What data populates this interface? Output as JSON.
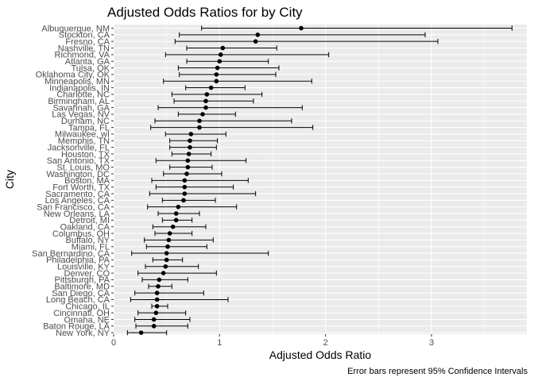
{
  "chart_data": {
    "type": "errorbar",
    "title": "Adjusted Odds Ratios for by City",
    "xlabel": "Adjusted Odds Ratio",
    "ylabel": "City",
    "caption": "Error bars represent 95% Confidence Intervals",
    "xlim": [
      0,
      3.9
    ],
    "xticks": [
      0,
      1,
      2,
      3
    ],
    "grid": true,
    "colors": {
      "panel": "#ebebeb",
      "grid_major": "#ffffff",
      "point": "#000000",
      "errorbar": "#000000"
    },
    "categories": [
      "Albuquerque, NM",
      "Stockton, CA",
      "Fresno, CA",
      "Nashville, TN",
      "Richmond, VA",
      "Atlanta, GA",
      "Tulsa, OK",
      "Oklahoma City, OK",
      "Minneapolis, MN",
      "Indianapolis, IN",
      "Charlotte, NC",
      "Birmingham, AL",
      "Savannah, GA",
      "Las Vegas, NV",
      "Durham, NC",
      "Tampa, FL",
      "Milwaukee, wI",
      "Memphis, TN",
      "Jacksonville, FL",
      "Houston, TX",
      "San Antonio, TX",
      "St. Louis, MO",
      "Washington, DC",
      "Boston, MA",
      "Fort Worth, TX",
      "Sacramento, CA",
      "Los Angeles, CA",
      "San Francisco, CA",
      "New Orleans, LA",
      "Detroit, MI",
      "Oakland, CA",
      "Columbus, OH",
      "Buffalo, NY",
      "Miami, FL",
      "San Bernardino, CA",
      "Philadelphia, PA",
      "Louisville, KY",
      "Denver, CO",
      "Pittsburgh, PA",
      "Baltimore, MD",
      "San Diego, CA",
      "Long Beach, CA",
      "Chicago, IL",
      "Cincinnati, OH",
      "Omaha, NE",
      "Baton Rouge, LA",
      "New York, NY"
    ],
    "estimates": [
      1.77,
      1.36,
      1.34,
      1.03,
      1.01,
      1.0,
      0.98,
      0.97,
      0.97,
      0.92,
      0.88,
      0.87,
      0.87,
      0.84,
      0.81,
      0.81,
      0.73,
      0.72,
      0.72,
      0.71,
      0.7,
      0.7,
      0.69,
      0.67,
      0.67,
      0.67,
      0.66,
      0.61,
      0.59,
      0.59,
      0.56,
      0.53,
      0.52,
      0.51,
      0.5,
      0.5,
      0.49,
      0.47,
      0.43,
      0.42,
      0.41,
      0.41,
      0.41,
      0.4,
      0.38,
      0.38,
      0.26
    ],
    "lower": [
      0.83,
      0.62,
      0.58,
      0.69,
      0.49,
      0.69,
      0.61,
      0.62,
      0.47,
      0.68,
      0.55,
      0.57,
      0.42,
      0.61,
      0.39,
      0.35,
      0.49,
      0.53,
      0.53,
      0.55,
      0.4,
      0.53,
      0.47,
      0.36,
      0.4,
      0.34,
      0.46,
      0.32,
      0.42,
      0.46,
      0.37,
      0.39,
      0.29,
      0.31,
      0.17,
      0.37,
      0.3,
      0.23,
      0.27,
      0.33,
      0.2,
      0.16,
      0.36,
      0.23,
      0.2,
      0.21,
      0.13
    ],
    "upper": [
      3.76,
      2.94,
      3.06,
      1.54,
      2.03,
      1.46,
      1.56,
      1.53,
      1.87,
      1.24,
      1.4,
      1.32,
      1.78,
      1.15,
      1.68,
      1.88,
      1.06,
      0.98,
      0.97,
      0.92,
      1.25,
      0.93,
      1.02,
      1.27,
      1.13,
      1.34,
      0.96,
      1.16,
      0.81,
      0.74,
      0.87,
      0.74,
      0.94,
      0.88,
      1.46,
      0.65,
      0.8,
      0.97,
      0.7,
      0.55,
      0.85,
      1.08,
      0.51,
      0.68,
      0.72,
      0.7,
      0.5
    ]
  }
}
